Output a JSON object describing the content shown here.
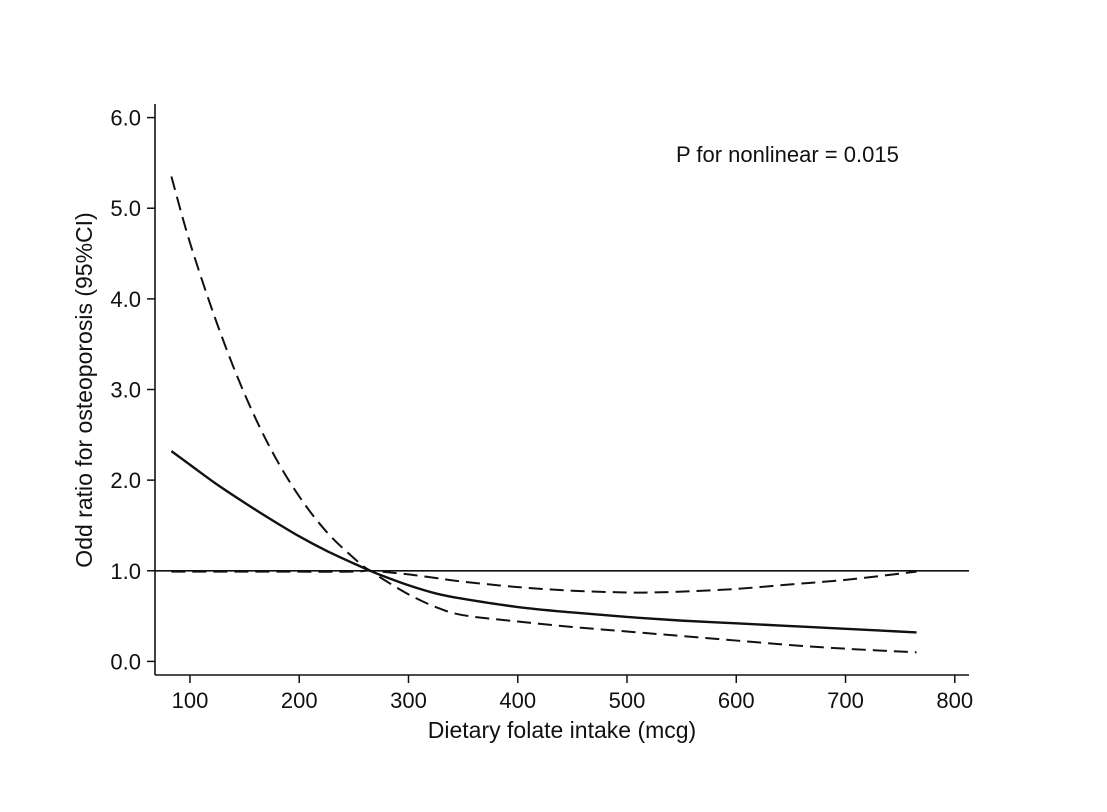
{
  "chart_data": {
    "type": "line",
    "title": "",
    "xlabel": "Dietary folate intake (mcg)",
    "ylabel": "Odd ratio for  osteoporosis (95%CI)",
    "xlim": [
      68,
      813
    ],
    "ylim": [
      -0.15,
      6.15
    ],
    "x_ticks": [
      100,
      200,
      300,
      400,
      500,
      600,
      700,
      800
    ],
    "x_tick_labels": [
      "100",
      "200",
      "300",
      "400",
      "500",
      "600",
      "700",
      "800"
    ],
    "y_ticks": [
      0,
      1,
      2,
      3,
      4,
      5,
      6
    ],
    "y_tick_labels": [
      "0.0",
      "1.0",
      "2.0",
      "3.0",
      "4.0",
      "5.0",
      "6.0"
    ],
    "reference_line": {
      "y": 1.0
    },
    "annotation": "P for nonlinear = 0.015",
    "grid": false,
    "legend": "none",
    "series": [
      {
        "role": "estimate",
        "style": "solid",
        "x": [
          83,
          100,
          125,
          150,
          175,
          200,
          225,
          250,
          265,
          275,
          300,
          325,
          350,
          400,
          450,
          500,
          550,
          600,
          650,
          700,
          765
        ],
        "y": [
          2.32,
          2.17,
          1.95,
          1.75,
          1.56,
          1.38,
          1.22,
          1.08,
          1.0,
          0.95,
          0.84,
          0.75,
          0.69,
          0.6,
          0.54,
          0.49,
          0.45,
          0.42,
          0.39,
          0.36,
          0.32
        ]
      },
      {
        "role": "upper-ci",
        "style": "dashed",
        "x": [
          83,
          100,
          125,
          150,
          175,
          200,
          225,
          250,
          265,
          275,
          300,
          325,
          350,
          400,
          450,
          500,
          520,
          550,
          600,
          650,
          700,
          765
        ],
        "y": [
          5.35,
          4.62,
          3.72,
          2.95,
          2.32,
          1.82,
          1.43,
          1.14,
          1.0,
          0.99,
          0.96,
          0.92,
          0.88,
          0.82,
          0.78,
          0.76,
          0.76,
          0.77,
          0.8,
          0.85,
          0.9,
          0.99
        ]
      },
      {
        "role": "lower-ci",
        "style": "dashed",
        "x": [
          83,
          100,
          150,
          200,
          250,
          265,
          275,
          300,
          325,
          350,
          400,
          450,
          500,
          550,
          600,
          650,
          700,
          765
        ],
        "y": [
          0.99,
          0.99,
          0.99,
          0.99,
          0.99,
          1.0,
          0.92,
          0.74,
          0.6,
          0.51,
          0.44,
          0.38,
          0.33,
          0.28,
          0.23,
          0.18,
          0.14,
          0.1
        ]
      }
    ],
    "colors": {
      "line": "#111111",
      "background": "#ffffff"
    }
  }
}
